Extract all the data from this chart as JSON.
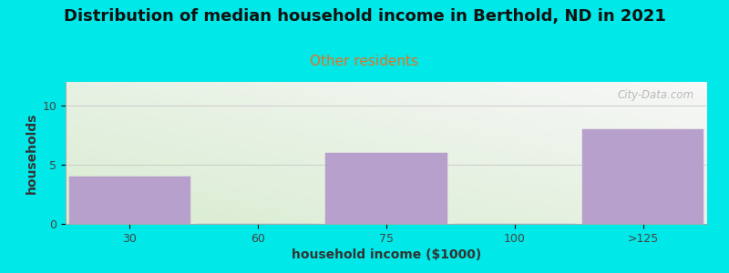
{
  "title": "Distribution of median household income in Berthold, ND in 2021",
  "subtitle": "Other residents",
  "subtitle_color": "#e87020",
  "xlabel": "household income ($1000)",
  "ylabel": "households",
  "categories": [
    "30",
    "60",
    "75",
    "100",
    ">125"
  ],
  "values": [
    4,
    0,
    6,
    0,
    8
  ],
  "bar_color": "#b8a0cc",
  "bar_edge_color": "#b8a0cc",
  "ylim": [
    0,
    12
  ],
  "yticks": [
    0,
    5,
    10
  ],
  "background_outer": "#00e8e8",
  "plot_bg_left_bottom": "#d8ecd0",
  "plot_bg_right_top": "#f8f8f8",
  "watermark": "City-Data.com",
  "title_fontsize": 13,
  "subtitle_fontsize": 11,
  "label_fontsize": 10,
  "tick_fontsize": 9,
  "bar_width": 0.95
}
